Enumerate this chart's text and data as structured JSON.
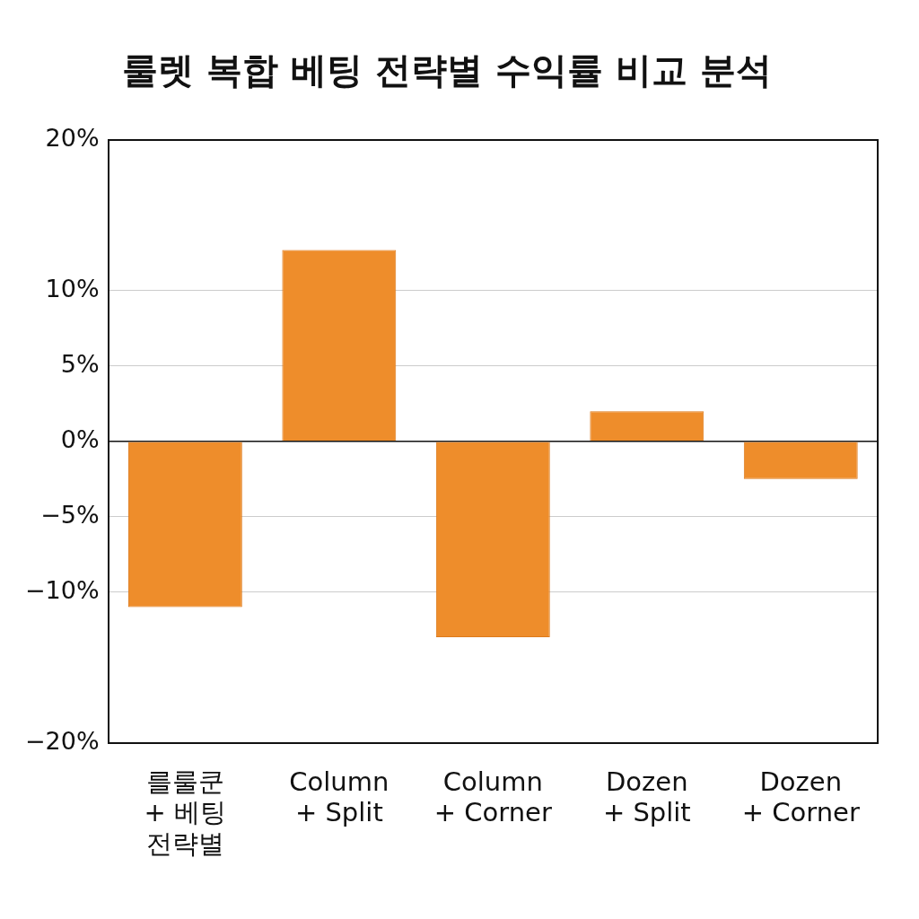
{
  "chart_data": {
    "type": "bar",
    "title": "룰렛 복합 베팅 전략별 수익률 비교 분석",
    "categories": [
      "를룰쿤\n+ 베팅\n전략별",
      "Column\n+ Split",
      "Column\n+ Corner",
      "Dozen\n+ Split",
      "Dozen\n+ Corner"
    ],
    "values": [
      -11,
      12.7,
      -13,
      2,
      -2.5
    ],
    "color": "#ee8d2b",
    "ylim": [
      -20,
      20
    ],
    "yticks": [
      {
        "value": -20,
        "label": "−20%"
      },
      {
        "value": -10,
        "label": "−10%"
      },
      {
        "value": -5,
        "label": "−5%"
      },
      {
        "value": 0,
        "label": "0%"
      },
      {
        "value": 5,
        "label": "5%"
      },
      {
        "value": 10,
        "label": "10%"
      },
      {
        "value": 20,
        "label": "20%"
      }
    ],
    "grid": "y"
  }
}
